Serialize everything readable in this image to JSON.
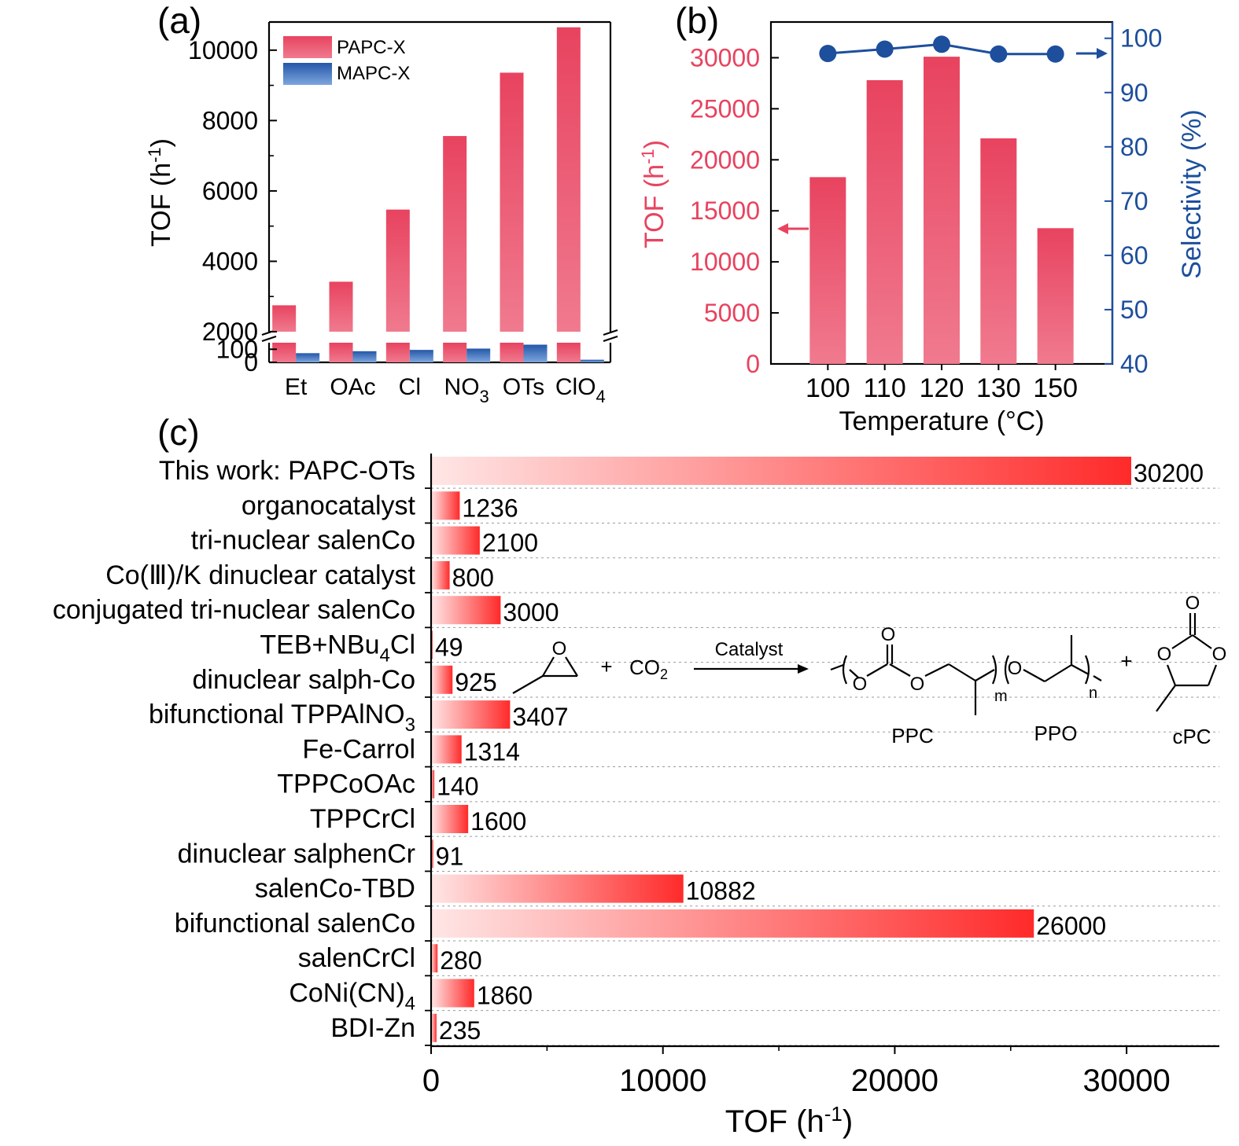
{
  "colors": {
    "papc": "#e8435f",
    "papc_light": "#f07a8f",
    "mapc": "#2457a8",
    "mapc_light": "#7ea6de",
    "selectivity": "#1d4f9c",
    "tof_axis": "#e8435f",
    "bar_c": "#ff2a2a",
    "bar_c_light": "#ffe6e6",
    "axis": "#000000",
    "grid": "#9a9a9a"
  },
  "panels": {
    "a": {
      "label": "(a)"
    },
    "b": {
      "label": "(b)"
    },
    "c": {
      "label": "(c)"
    }
  },
  "chart_data": [
    {
      "type": "bar",
      "panel": "a",
      "ylabel": "TOF (h-1)",
      "ylabel_main": "TOF (h",
      "ylabel_sup": "-1",
      "ylabel_close": ")",
      "categories": [
        "Et",
        "OAc",
        "Cl",
        "NO3",
        "OTs",
        "ClO4"
      ],
      "category_labels": [
        {
          "main": "Et",
          "sub": ""
        },
        {
          "main": "OAc",
          "sub": ""
        },
        {
          "main": "Cl",
          "sub": ""
        },
        {
          "main": "NO",
          "sub": "3"
        },
        {
          "main": "OTs",
          "sub": ""
        },
        {
          "main": "ClO",
          "sub": "4"
        }
      ],
      "series": [
        {
          "name": "PAPC-X",
          "values": [
            2750,
            3420,
            5470,
            7560,
            9360,
            10650
          ]
        },
        {
          "name": "MAPC-X",
          "values": [
            70,
            85,
            95,
            105,
            135,
            20
          ]
        }
      ],
      "legend": "top-left",
      "broken_axis": true,
      "axis_break": [
        150,
        2000
      ],
      "lower_ticks": [
        "0",
        "100"
      ],
      "upper_ticks": [
        "2000",
        "4000",
        "6000",
        "8000",
        "10000"
      ],
      "ylim_lower": [
        0,
        150
      ],
      "ylim_upper": [
        2000,
        10800
      ]
    },
    {
      "type": "bar",
      "panel": "b",
      "xlabel": "Temperature (°C)",
      "ylabel": "TOF (h-1)",
      "ylabel_main": "TOF (h",
      "ylabel_sup": "-1",
      "ylabel_close": ")",
      "y2label": "Selectivity (%)",
      "categories": [
        "100",
        "110",
        "120",
        "130",
        "150"
      ],
      "series": [
        {
          "name": "TOF",
          "type": "bar",
          "axis": "left",
          "values": [
            18300,
            27800,
            30100,
            22100,
            13300
          ]
        },
        {
          "name": "Selectivity",
          "type": "line",
          "axis": "right",
          "values": [
            97.2,
            98,
            98.9,
            97.1,
            97.1
          ]
        }
      ],
      "ylim": [
        0,
        33500
      ],
      "y_ticks": [
        "0",
        "5000",
        "10000",
        "15000",
        "20000",
        "25000",
        "30000"
      ],
      "y2lim": [
        40,
        103
      ],
      "y2_ticks": [
        "40",
        "50",
        "60",
        "70",
        "80",
        "90",
        "100"
      ]
    },
    {
      "type": "bar",
      "panel": "c",
      "orientation": "horizontal",
      "xlabel": "TOF (h-1)",
      "xlabel_main": "TOF (h",
      "xlabel_sup": "-1",
      "xlabel_close": ")",
      "xlim": [
        0,
        34000
      ],
      "x_ticks": [
        "0",
        "10000",
        "20000",
        "30000"
      ],
      "categories": [
        {
          "main": "This work: PAPC-OTs",
          "sub": ""
        },
        {
          "main": "organocatalyst",
          "sub": ""
        },
        {
          "main": "tri-nuclear salenCo",
          "sub": ""
        },
        {
          "main": "Co(Ⅲ)/K dinuclear catalyst",
          "sub": ""
        },
        {
          "main": "conjugated tri-nuclear salenCo",
          "sub": ""
        },
        {
          "main": "TEB+NBu",
          "sub": "4",
          "tail": "Cl"
        },
        {
          "main": "dinuclear salph-Co",
          "sub": ""
        },
        {
          "main": "bifunctional TPPAlNO",
          "sub": "3"
        },
        {
          "main": "Fe-Carrol",
          "sub": ""
        },
        {
          "main": "TPPCoOAc",
          "sub": ""
        },
        {
          "main": "TPPCrCl",
          "sub": ""
        },
        {
          "main": "dinuclear salphenCr",
          "sub": ""
        },
        {
          "main": "salenCo-TBD",
          "sub": ""
        },
        {
          "main": "bifunctional salenCo",
          "sub": ""
        },
        {
          "main": "salenCrCl",
          "sub": ""
        },
        {
          "main": "CoNi(CN)",
          "sub": "4"
        },
        {
          "main": "BDI-Zn",
          "sub": ""
        }
      ],
      "values": [
        30200,
        1236,
        2100,
        800,
        3000,
        49,
        925,
        3407,
        1314,
        140,
        1600,
        91,
        10882,
        26000,
        280,
        1860,
        235
      ],
      "value_labels": [
        "30200",
        "1236",
        "2100",
        "800",
        "3000",
        "49",
        "925",
        "3407",
        "1314",
        "140",
        "1600",
        "91",
        "10882",
        "26000",
        "280",
        "1860",
        "235"
      ]
    }
  ],
  "scheme": {
    "reagent": "CO",
    "reagent_sub": "2",
    "plus": "+",
    "arrow_label": "Catalyst",
    "atom_o": "O",
    "sub_m": "m",
    "sub_n": "n",
    "products": [
      "PPC",
      "PPO",
      "cPC"
    ]
  }
}
